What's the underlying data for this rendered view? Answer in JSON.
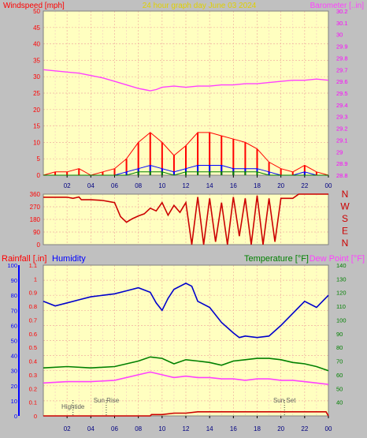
{
  "chart_data": [
    {
      "type": "line",
      "title": "24 hour graph day   June 03 2024",
      "left_axis_label": "Windspeed [mph]",
      "right_axis_label": "Barometer [..in]",
      "left_ylim": [
        0,
        50
      ],
      "left_ticks": [
        "0",
        "5",
        "10",
        "15",
        "20",
        "25",
        "30",
        "35",
        "40",
        "45",
        "50"
      ],
      "right_ylim": [
        28.8,
        30.2
      ],
      "right_ticks": [
        "28.8",
        "28.9",
        "29",
        "29.1",
        "29.2",
        "29.3",
        "29.4",
        "29.5",
        "29.6",
        "29.7",
        "29.8",
        "29.9",
        "30",
        "30.1",
        "30.2"
      ],
      "x_ticks": [
        "02",
        "04",
        "06",
        "08",
        "10",
        "12",
        "14",
        "16",
        "18",
        "20",
        "22",
        "00"
      ],
      "grid": true,
      "series": [
        {
          "name": "Barometer",
          "color": "#ff40ff",
          "axis": "right",
          "x": [
            0,
            1,
            2,
            3,
            4,
            5,
            6,
            7,
            8,
            8.5,
            9,
            9.5,
            10,
            11,
            12,
            13,
            14,
            15,
            16,
            17,
            18,
            19,
            20,
            21,
            22,
            23,
            24
          ],
          "values": [
            29.7,
            29.69,
            29.68,
            29.67,
            29.65,
            29.63,
            29.6,
            29.57,
            29.54,
            29.53,
            29.52,
            29.53,
            29.55,
            29.56,
            29.55,
            29.56,
            29.56,
            29.57,
            29.57,
            29.58,
            29.58,
            29.59,
            29.6,
            29.61,
            29.61,
            29.62,
            29.61
          ]
        },
        {
          "name": "Wind gust",
          "color": "#ff0000",
          "x": [
            0,
            1,
            2,
            3,
            4,
            5,
            6,
            7,
            8,
            9,
            10,
            11,
            12,
            13,
            14,
            15,
            16,
            17,
            18,
            19,
            20,
            21,
            22,
            23,
            24
          ],
          "values": [
            0,
            1,
            1,
            2,
            0,
            1,
            2,
            5,
            10,
            13,
            10,
            6,
            9,
            13,
            13,
            12,
            11,
            10,
            8,
            4,
            2,
            1,
            3,
            1,
            0
          ]
        },
        {
          "name": "Wind speed",
          "color": "#0000ff",
          "x": [
            0,
            1,
            2,
            3,
            4,
            5,
            6,
            7,
            8,
            9,
            10,
            11,
            12,
            13,
            14,
            15,
            16,
            17,
            18,
            19,
            20,
            21,
            22,
            23,
            24
          ],
          "values": [
            0,
            0,
            0,
            0,
            0,
            0,
            0,
            1,
            2,
            3,
            2,
            1,
            2,
            3,
            3,
            3,
            2,
            2,
            2,
            1,
            0,
            0,
            1,
            0,
            0
          ]
        },
        {
          "name": "Wind avg",
          "color": "#008000",
          "x": [
            0,
            1,
            2,
            3,
            4,
            5,
            6,
            7,
            8,
            9,
            10,
            11,
            12,
            13,
            14,
            15,
            16,
            17,
            18,
            19,
            20,
            21,
            22,
            23,
            24
          ],
          "values": [
            0,
            0,
            0,
            0,
            0,
            0,
            0,
            0,
            1,
            1,
            1,
            0,
            1,
            1,
            1,
            1,
            1,
            1,
            1,
            0,
            0,
            0,
            0,
            0,
            0
          ]
        }
      ]
    },
    {
      "type": "line",
      "ylim": [
        0,
        360
      ],
      "left_ticks": [
        "0",
        "90",
        "180",
        "270",
        "360"
      ],
      "compass_labels": [
        "N",
        "W",
        "S",
        "E",
        "N"
      ],
      "x_ticks": [
        "02",
        "04",
        "06",
        "08",
        "10",
        "12",
        "14",
        "16",
        "18",
        "20",
        "22",
        "00"
      ],
      "grid": true,
      "series": [
        {
          "name": "Wind direction",
          "color": "#cc0000",
          "x": [
            0,
            2,
            2.5,
            3,
            3.2,
            4,
            5,
            6,
            6.5,
            7,
            7.5,
            8,
            8.5,
            9,
            9.5,
            10,
            10.5,
            11,
            11.5,
            12,
            12.5,
            13,
            13.5,
            14,
            14.5,
            15,
            15.5,
            16,
            16.5,
            17,
            17.5,
            18,
            18.5,
            19,
            19.5,
            20,
            20.5,
            21,
            21.5,
            22,
            24
          ],
          "values": [
            338,
            338,
            330,
            340,
            320,
            320,
            315,
            300,
            200,
            160,
            185,
            205,
            220,
            260,
            240,
            300,
            210,
            280,
            230,
            300,
            0,
            340,
            0,
            330,
            20,
            300,
            0,
            340,
            60,
            330,
            0,
            350,
            0,
            330,
            20,
            330,
            330,
            330,
            360,
            360,
            360
          ]
        }
      ]
    },
    {
      "type": "line",
      "left_axis_label": "Rainfall [.in]",
      "left_axis_label_2": "Humidity",
      "right_axis_label": "Temperature [°F]",
      "right_axis_label_2": "Dew Point [°F]",
      "humidity_ylim": [
        0,
        100
      ],
      "humidity_ticks": [
        "0",
        "10",
        "20",
        "30",
        "40",
        "50",
        "60",
        "70",
        "80",
        "90",
        "100"
      ],
      "rain_ylim": [
        0,
        1.1
      ],
      "rain_ticks": [
        "0",
        "0.1",
        "0.2",
        "0.3",
        "0.4",
        "0.5",
        "0.6",
        "0.7",
        "0.8",
        "0.9",
        "1",
        "1.1"
      ],
      "temp_ylim": [
        30,
        140
      ],
      "temp_ticks": [
        "40",
        "50",
        "60",
        "70",
        "80",
        "90",
        "100",
        "110",
        "120",
        "130",
        "140"
      ],
      "x_ticks": [
        "02",
        "04",
        "06",
        "08",
        "10",
        "12",
        "14",
        "16",
        "18",
        "20",
        "22",
        "00"
      ],
      "annotations": [
        "Hightide",
        "Sun Rise",
        "Sun Set"
      ],
      "grid": true,
      "series": [
        {
          "name": "Humidity",
          "color": "#0000cc",
          "axis": "humidity",
          "x": [
            0,
            1,
            2,
            3,
            4,
            5,
            6,
            7,
            8,
            9,
            9.5,
            10,
            10.5,
            11,
            12,
            12.5,
            13,
            14,
            15,
            16,
            16.5,
            17,
            18,
            19,
            20,
            21,
            22,
            23,
            24
          ],
          "values": [
            76,
            73,
            75,
            77,
            79,
            80,
            81,
            83,
            85,
            82,
            75,
            70,
            78,
            84,
            88,
            86,
            76,
            72,
            62,
            55,
            52,
            53,
            52,
            53,
            60,
            68,
            76,
            72,
            80
          ]
        },
        {
          "name": "Temperature",
          "color": "#008000",
          "axis": "temp",
          "x": [
            0,
            2,
            4,
            6,
            8,
            9,
            10,
            11,
            12,
            13,
            14,
            15,
            16,
            17,
            18,
            19,
            20,
            21,
            22,
            23,
            24
          ],
          "values": [
            65,
            66,
            65,
            66,
            70,
            73,
            72,
            68,
            71,
            70,
            69,
            67,
            70,
            71,
            72,
            72,
            71,
            69,
            68,
            66,
            63
          ]
        },
        {
          "name": "Dew Point",
          "color": "#ff40ff",
          "axis": "temp",
          "x": [
            0,
            2,
            4,
            6,
            8,
            9,
            10,
            11,
            12,
            13,
            14,
            15,
            16,
            17,
            18,
            19,
            20,
            21,
            22,
            23,
            24
          ],
          "values": [
            54,
            55,
            55,
            56,
            60,
            62,
            60,
            58,
            59,
            58,
            58,
            57,
            57,
            56,
            57,
            57,
            56,
            56,
            55,
            54,
            53
          ]
        },
        {
          "name": "Rainfall",
          "color": "#cc0000",
          "axis": "rain",
          "x": [
            0,
            9,
            9.1,
            10,
            11,
            12,
            13,
            14,
            18,
            19,
            20,
            21,
            22,
            23,
            23.8,
            24
          ],
          "values": [
            0,
            0,
            0.01,
            0.01,
            0.02,
            0.02,
            0.03,
            0.03,
            0.03,
            0.03,
            0.03,
            0.03,
            0.03,
            0.03,
            0.03,
            0
          ]
        }
      ]
    }
  ]
}
